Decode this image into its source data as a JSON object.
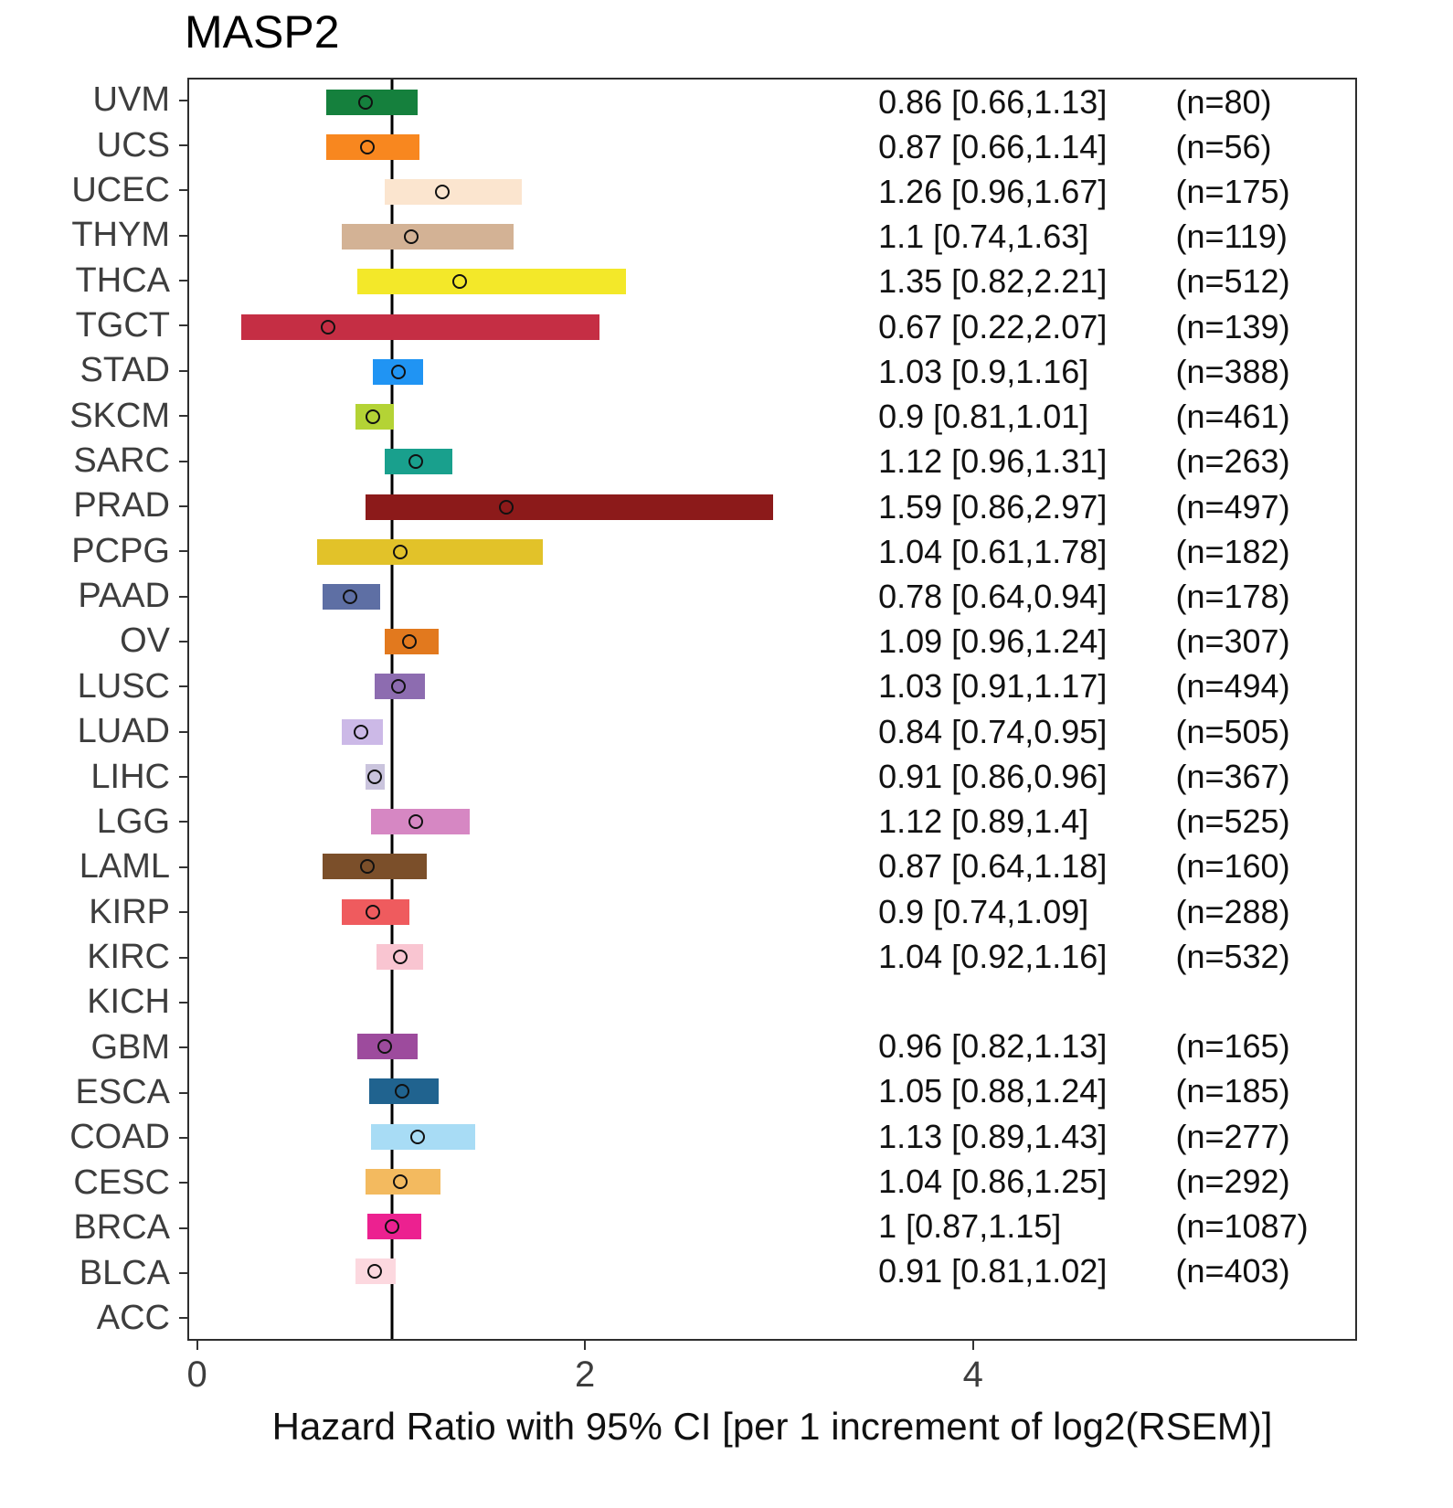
{
  "header": {
    "title": "MASP2"
  },
  "axis": {
    "min": -0.05,
    "max": 5.98
  },
  "chart_data": {
    "type": "scatter",
    "variant": "forest-plot",
    "title": "MASP2",
    "xlabel": "Hazard Ratio with 95% CI [per 1 increment of log2(RSEM)]",
    "x_ticks": [
      0,
      2,
      4
    ],
    "x_range": [
      -0.05,
      5.98
    ],
    "ref_line_x": 1,
    "grid": false,
    "legend": "none",
    "rows": [
      {
        "label": "UVM",
        "hr": 0.86,
        "ci_low": 0.66,
        "ci_high": 1.13,
        "n": 80,
        "hr_text": "0.86 [0.66,1.13]",
        "n_text": "(n=80)",
        "color": "#15803d"
      },
      {
        "label": "UCS",
        "hr": 0.87,
        "ci_low": 0.66,
        "ci_high": 1.14,
        "n": 56,
        "hr_text": "0.87 [0.66,1.14]",
        "n_text": "(n=56)",
        "color": "#f8871f"
      },
      {
        "label": "UCEC",
        "hr": 1.26,
        "ci_low": 0.96,
        "ci_high": 1.67,
        "n": 175,
        "hr_text": "1.26 [0.96,1.67]",
        "n_text": "(n=175)",
        "color": "#fbe5cf"
      },
      {
        "label": "THYM",
        "hr": 1.1,
        "ci_low": 0.74,
        "ci_high": 1.63,
        "n": 119,
        "hr_text": "1.1 [0.74,1.63]",
        "n_text": "(n=119)",
        "color": "#d3b295"
      },
      {
        "label": "THCA",
        "hr": 1.35,
        "ci_low": 0.82,
        "ci_high": 2.21,
        "n": 512,
        "hr_text": "1.35 [0.82,2.21]",
        "n_text": "(n=512)",
        "color": "#f3e829"
      },
      {
        "label": "TGCT",
        "hr": 0.67,
        "ci_low": 0.22,
        "ci_high": 2.07,
        "n": 139,
        "hr_text": "0.67 [0.22,2.07]",
        "n_text": "(n=139)",
        "color": "#c52e44"
      },
      {
        "label": "STAD",
        "hr": 1.03,
        "ci_low": 0.9,
        "ci_high": 1.16,
        "n": 388,
        "hr_text": "1.03 [0.9,1.16]",
        "n_text": "(n=388)",
        "color": "#2094f3"
      },
      {
        "label": "SKCM",
        "hr": 0.9,
        "ci_low": 0.81,
        "ci_high": 1.01,
        "n": 461,
        "hr_text": "0.9 [0.81,1.01]",
        "n_text": "(n=461)",
        "color": "#b4d335"
      },
      {
        "label": "SARC",
        "hr": 1.12,
        "ci_low": 0.96,
        "ci_high": 1.31,
        "n": 263,
        "hr_text": "1.12 [0.96,1.31]",
        "n_text": "(n=263)",
        "color": "#19a08d"
      },
      {
        "label": "PRAD",
        "hr": 1.59,
        "ci_low": 0.86,
        "ci_high": 2.97,
        "n": 497,
        "hr_text": "1.59 [0.86,2.97]",
        "n_text": "(n=497)",
        "color": "#8c1a1a"
      },
      {
        "label": "PCPG",
        "hr": 1.04,
        "ci_low": 0.61,
        "ci_high": 1.78,
        "n": 182,
        "hr_text": "1.04 [0.61,1.78]",
        "n_text": "(n=182)",
        "color": "#e2c229"
      },
      {
        "label": "PAAD",
        "hr": 0.78,
        "ci_low": 0.64,
        "ci_high": 0.94,
        "n": 178,
        "hr_text": "0.78 [0.64,0.94]",
        "n_text": "(n=178)",
        "color": "#5e6fa4"
      },
      {
        "label": "OV",
        "hr": 1.09,
        "ci_low": 0.96,
        "ci_high": 1.24,
        "n": 307,
        "hr_text": "1.09 [0.96,1.24]",
        "n_text": "(n=307)",
        "color": "#e2791e"
      },
      {
        "label": "LUSC",
        "hr": 1.03,
        "ci_low": 0.91,
        "ci_high": 1.17,
        "n": 494,
        "hr_text": "1.03 [0.91,1.17]",
        "n_text": "(n=494)",
        "color": "#8d6cb0"
      },
      {
        "label": "LUAD",
        "hr": 0.84,
        "ci_low": 0.74,
        "ci_high": 0.95,
        "n": 505,
        "hr_text": "0.84 [0.74,0.95]",
        "n_text": "(n=505)",
        "color": "#ccb9e7"
      },
      {
        "label": "LIHC",
        "hr": 0.91,
        "ci_low": 0.86,
        "ci_high": 0.96,
        "n": 367,
        "hr_text": "0.91 [0.86,0.96]",
        "n_text": "(n=367)",
        "color": "#cac4dd"
      },
      {
        "label": "LGG",
        "hr": 1.12,
        "ci_low": 0.89,
        "ci_high": 1.4,
        "n": 525,
        "hr_text": "1.12 [0.89,1.4]",
        "n_text": "(n=525)",
        "color": "#d687c3"
      },
      {
        "label": "LAML",
        "hr": 0.87,
        "ci_low": 0.64,
        "ci_high": 1.18,
        "n": 160,
        "hr_text": "0.87 [0.64,1.18]",
        "n_text": "(n=160)",
        "color": "#7b4f2a"
      },
      {
        "label": "KIRP",
        "hr": 0.9,
        "ci_low": 0.74,
        "ci_high": 1.09,
        "n": 288,
        "hr_text": "0.9 [0.74,1.09]",
        "n_text": "(n=288)",
        "color": "#ef5b5e"
      },
      {
        "label": "KIRC",
        "hr": 1.04,
        "ci_low": 0.92,
        "ci_high": 1.16,
        "n": 532,
        "hr_text": "1.04 [0.92,1.16]",
        "n_text": "(n=532)",
        "color": "#f9c5d1"
      },
      {
        "label": "KICH",
        "hr": null,
        "ci_low": null,
        "ci_high": null,
        "n": null,
        "hr_text": "",
        "n_text": "",
        "color": null
      },
      {
        "label": "GBM",
        "hr": 0.96,
        "ci_low": 0.82,
        "ci_high": 1.13,
        "n": 165,
        "hr_text": "0.96 [0.82,1.13]",
        "n_text": "(n=165)",
        "color": "#9d4b9d"
      },
      {
        "label": "ESCA",
        "hr": 1.05,
        "ci_low": 0.88,
        "ci_high": 1.24,
        "n": 185,
        "hr_text": "1.05 [0.88,1.24]",
        "n_text": "(n=185)",
        "color": "#20638f"
      },
      {
        "label": "COAD",
        "hr": 1.13,
        "ci_low": 0.89,
        "ci_high": 1.43,
        "n": 277,
        "hr_text": "1.13 [0.89,1.43]",
        "n_text": "(n=277)",
        "color": "#a8dcf5"
      },
      {
        "label": "CESC",
        "hr": 1.04,
        "ci_low": 0.86,
        "ci_high": 1.25,
        "n": 292,
        "hr_text": "1.04 [0.86,1.25]",
        "n_text": "(n=292)",
        "color": "#f3ba5f"
      },
      {
        "label": "BRCA",
        "hr": 1,
        "ci_low": 0.87,
        "ci_high": 1.15,
        "n": 1087,
        "hr_text": "1 [0.87,1.15]",
        "n_text": "(n=1087)",
        "color": "#ec2190"
      },
      {
        "label": "BLCA",
        "hr": 0.91,
        "ci_low": 0.81,
        "ci_high": 1.02,
        "n": 403,
        "hr_text": "0.91 [0.81,1.02]",
        "n_text": "(n=403)",
        "color": "#fcd8df"
      },
      {
        "label": "ACC",
        "hr": null,
        "ci_low": null,
        "ci_high": null,
        "n": null,
        "hr_text": "",
        "n_text": "",
        "color": null
      }
    ]
  },
  "colors": {
    "axis_text": "#3d3d3d",
    "value_text": "#111111",
    "ref_line": "#000000",
    "panel_border": "#2e2e2e",
    "background": "#ffffff"
  }
}
